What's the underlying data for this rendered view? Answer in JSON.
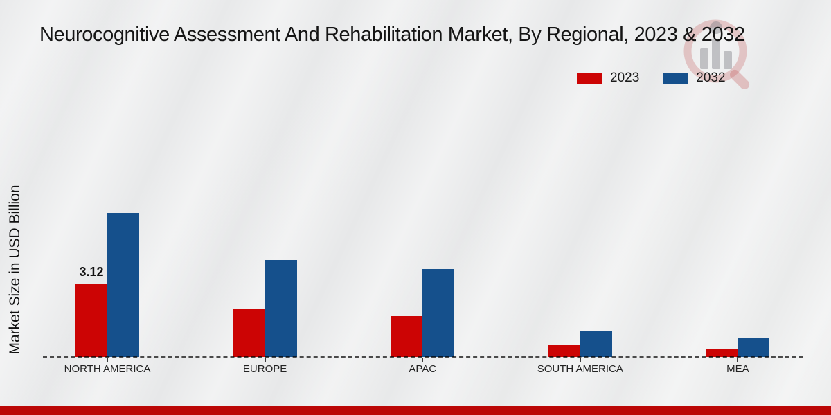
{
  "page": {
    "background_color": "#e9eaeb",
    "footer_color": "#bb0706"
  },
  "chart_data": {
    "type": "bar",
    "title": "Neurocognitive Assessment And Rehabilitation Market, By Regional, 2023 & 2032",
    "xlabel": "",
    "ylabel": "Market Size in USD Billion",
    "categories": [
      "NORTH AMERICA",
      "EUROPE",
      "APAC",
      "SOUTH AMERICA",
      "MEA"
    ],
    "series": [
      {
        "name": "2023",
        "color": "#cc0404",
        "values": [
          3.12,
          2.03,
          1.74,
          0.49,
          0.35
        ]
      },
      {
        "name": "2032",
        "color": "#15508c",
        "values": [
          6.12,
          4.12,
          3.74,
          1.1,
          0.81
        ]
      }
    ],
    "data_labels": [
      {
        "series": "2023",
        "category": "NORTH AMERICA",
        "text": "3.12"
      }
    ],
    "ylim": [
      0,
      7
    ],
    "grid": false,
    "axis_ticks_visible": false,
    "baseline_style": "dashed",
    "legend_position": "top-right"
  },
  "watermark": {
    "name": "market-research-magnifier-logo"
  }
}
